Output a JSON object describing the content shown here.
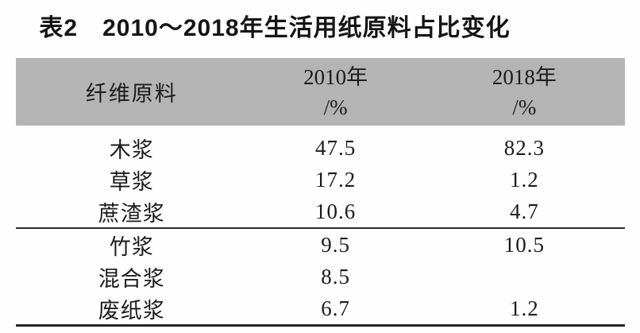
{
  "title": "表2　2010～2018年生活用纸原料占比变化",
  "table": {
    "header": {
      "material": "纤维原料",
      "y2010_label": "2010年",
      "y2010_unit": "/%",
      "y2018_label": "2018年",
      "y2018_unit": "/%"
    },
    "rows": [
      {
        "material": "木浆",
        "y2010": "47.5",
        "y2018": "82.3"
      },
      {
        "material": "草浆",
        "y2010": "17.2",
        "y2018": "1.2"
      },
      {
        "material": "蔗渣浆",
        "y2010": "10.6",
        "y2018": "4.7"
      },
      {
        "material": "竹浆",
        "y2010": "9.5",
        "y2018": "10.5"
      },
      {
        "material": "混合浆",
        "y2010": "8.5",
        "y2018": ""
      },
      {
        "material": "废纸浆",
        "y2010": "6.7",
        "y2018": "1.2"
      }
    ]
  },
  "colors": {
    "header_background": "#b4b4b4",
    "rule": "#2e2e2e",
    "text": "#1c1c1c"
  }
}
